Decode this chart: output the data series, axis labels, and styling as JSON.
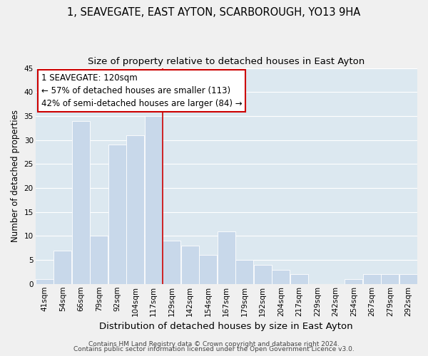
{
  "title": "1, SEAVEGATE, EAST AYTON, SCARBOROUGH, YO13 9HA",
  "subtitle": "Size of property relative to detached houses in East Ayton",
  "xlabel": "Distribution of detached houses by size in East Ayton",
  "ylabel": "Number of detached properties",
  "bar_color": "#c8d8ea",
  "bar_edge_color": "#ffffff",
  "grid_color": "#ffffff",
  "bg_color": "#dce8f0",
  "fig_bg_color": "#f0f0f0",
  "bin_labels": [
    "41sqm",
    "54sqm",
    "66sqm",
    "79sqm",
    "92sqm",
    "104sqm",
    "117sqm",
    "129sqm",
    "142sqm",
    "154sqm",
    "167sqm",
    "179sqm",
    "192sqm",
    "204sqm",
    "217sqm",
    "229sqm",
    "242sqm",
    "254sqm",
    "267sqm",
    "279sqm",
    "292sqm"
  ],
  "bar_heights": [
    1,
    7,
    34,
    10,
    29,
    31,
    35,
    9,
    8,
    6,
    11,
    5,
    4,
    3,
    2,
    0,
    0,
    1,
    2,
    2,
    2
  ],
  "ylim": [
    0,
    45
  ],
  "yticks": [
    0,
    5,
    10,
    15,
    20,
    25,
    30,
    35,
    40,
    45
  ],
  "property_line_color": "#cc0000",
  "property_line_bin_index": 6,
  "ann_line1": "1 SEAVEGATE: 120sqm",
  "ann_line2": "← 57% of detached houses are smaller (113)",
  "ann_line3": "42% of semi-detached houses are larger (84) →",
  "footer_line1": "Contains HM Land Registry data © Crown copyright and database right 2024.",
  "footer_line2": "Contains public sector information licensed under the Open Government Licence v3.0.",
  "title_fontsize": 10.5,
  "subtitle_fontsize": 9.5,
  "xlabel_fontsize": 9.5,
  "ylabel_fontsize": 8.5,
  "tick_fontsize": 7.5,
  "annotation_fontsize": 8.5,
  "footer_fontsize": 6.5
}
